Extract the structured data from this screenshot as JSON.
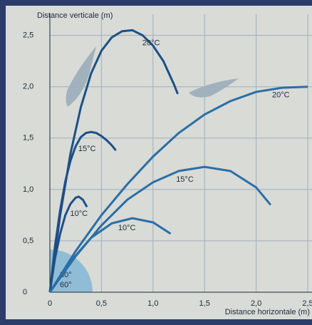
{
  "chart_data": {
    "type": "line",
    "y_label": "Distance verticale (m)",
    "x_label": "Distance horizontale (m)",
    "xlim": [
      0,
      2.5
    ],
    "ylim": [
      0,
      2.65
    ],
    "xticks": [
      0,
      {
        "value": 0.5,
        "label": "0,5"
      },
      {
        "value": 1.0,
        "label": "1,0"
      },
      {
        "value": 1.5,
        "label": "1,5"
      },
      {
        "value": 2.0,
        "label": "2,0"
      },
      {
        "value": 2.5,
        "label": "2,5"
      }
    ],
    "yticks": [
      0,
      {
        "value": 0.5,
        "label": "0,5"
      },
      {
        "value": 1.0,
        "label": "1,0"
      },
      {
        "value": 1.5,
        "label": "1,5"
      },
      {
        "value": 2.0,
        "label": "2,0"
      },
      {
        "value": 2.5,
        "label": "2,5"
      }
    ],
    "grid": true,
    "annotations": [
      "80°",
      "60°"
    ],
    "series": [
      {
        "name": "20°C",
        "color": "#1d4f86",
        "x": [
          0,
          0.1,
          0.2,
          0.3,
          0.4,
          0.5,
          0.6,
          0.7,
          0.8,
          0.9,
          1.0,
          1.1,
          1.2,
          1.24
        ],
        "values": [
          0,
          0.75,
          1.35,
          1.8,
          2.13,
          2.35,
          2.48,
          2.54,
          2.55,
          2.5,
          2.4,
          2.25,
          2.03,
          1.93
        ]
      },
      {
        "name": "15°C",
        "color": "#1d4f86",
        "x": [
          0,
          0.05,
          0.1,
          0.15,
          0.2,
          0.25,
          0.3,
          0.35,
          0.4,
          0.45,
          0.5,
          0.55,
          0.6,
          0.64
        ],
        "values": [
          0,
          0.45,
          0.8,
          1.08,
          1.28,
          1.42,
          1.51,
          1.55,
          1.56,
          1.55,
          1.52,
          1.48,
          1.43,
          1.38
        ]
      },
      {
        "name": "10°C",
        "color": "#1d4f86",
        "x": [
          0,
          0.05,
          0.1,
          0.15,
          0.2,
          0.25,
          0.28,
          0.32,
          0.36
        ],
        "values": [
          0,
          0.33,
          0.57,
          0.75,
          0.86,
          0.92,
          0.93,
          0.9,
          0.83
        ]
      },
      {
        "name": "20°C",
        "color": "#2a6ea6",
        "x": [
          0,
          0.25,
          0.5,
          0.75,
          1.0,
          1.25,
          1.5,
          1.75,
          2.0,
          2.25,
          2.5
        ],
        "values": [
          0,
          0.4,
          0.75,
          1.05,
          1.32,
          1.55,
          1.73,
          1.86,
          1.95,
          1.99,
          2.0
        ]
      },
      {
        "name": "15°C",
        "color": "#2a6ea6",
        "x": [
          0,
          0.25,
          0.5,
          0.75,
          1.0,
          1.25,
          1.5,
          1.75,
          2.0,
          2.14
        ],
        "values": [
          0,
          0.35,
          0.65,
          0.9,
          1.07,
          1.18,
          1.22,
          1.18,
          1.02,
          0.85
        ]
      },
      {
        "name": "10°C",
        "color": "#2a6ea6",
        "x": [
          0,
          0.2,
          0.4,
          0.6,
          0.8,
          1.0,
          1.17
        ],
        "values": [
          0,
          0.3,
          0.53,
          0.67,
          0.72,
          0.68,
          0.57
        ]
      }
    ]
  }
}
